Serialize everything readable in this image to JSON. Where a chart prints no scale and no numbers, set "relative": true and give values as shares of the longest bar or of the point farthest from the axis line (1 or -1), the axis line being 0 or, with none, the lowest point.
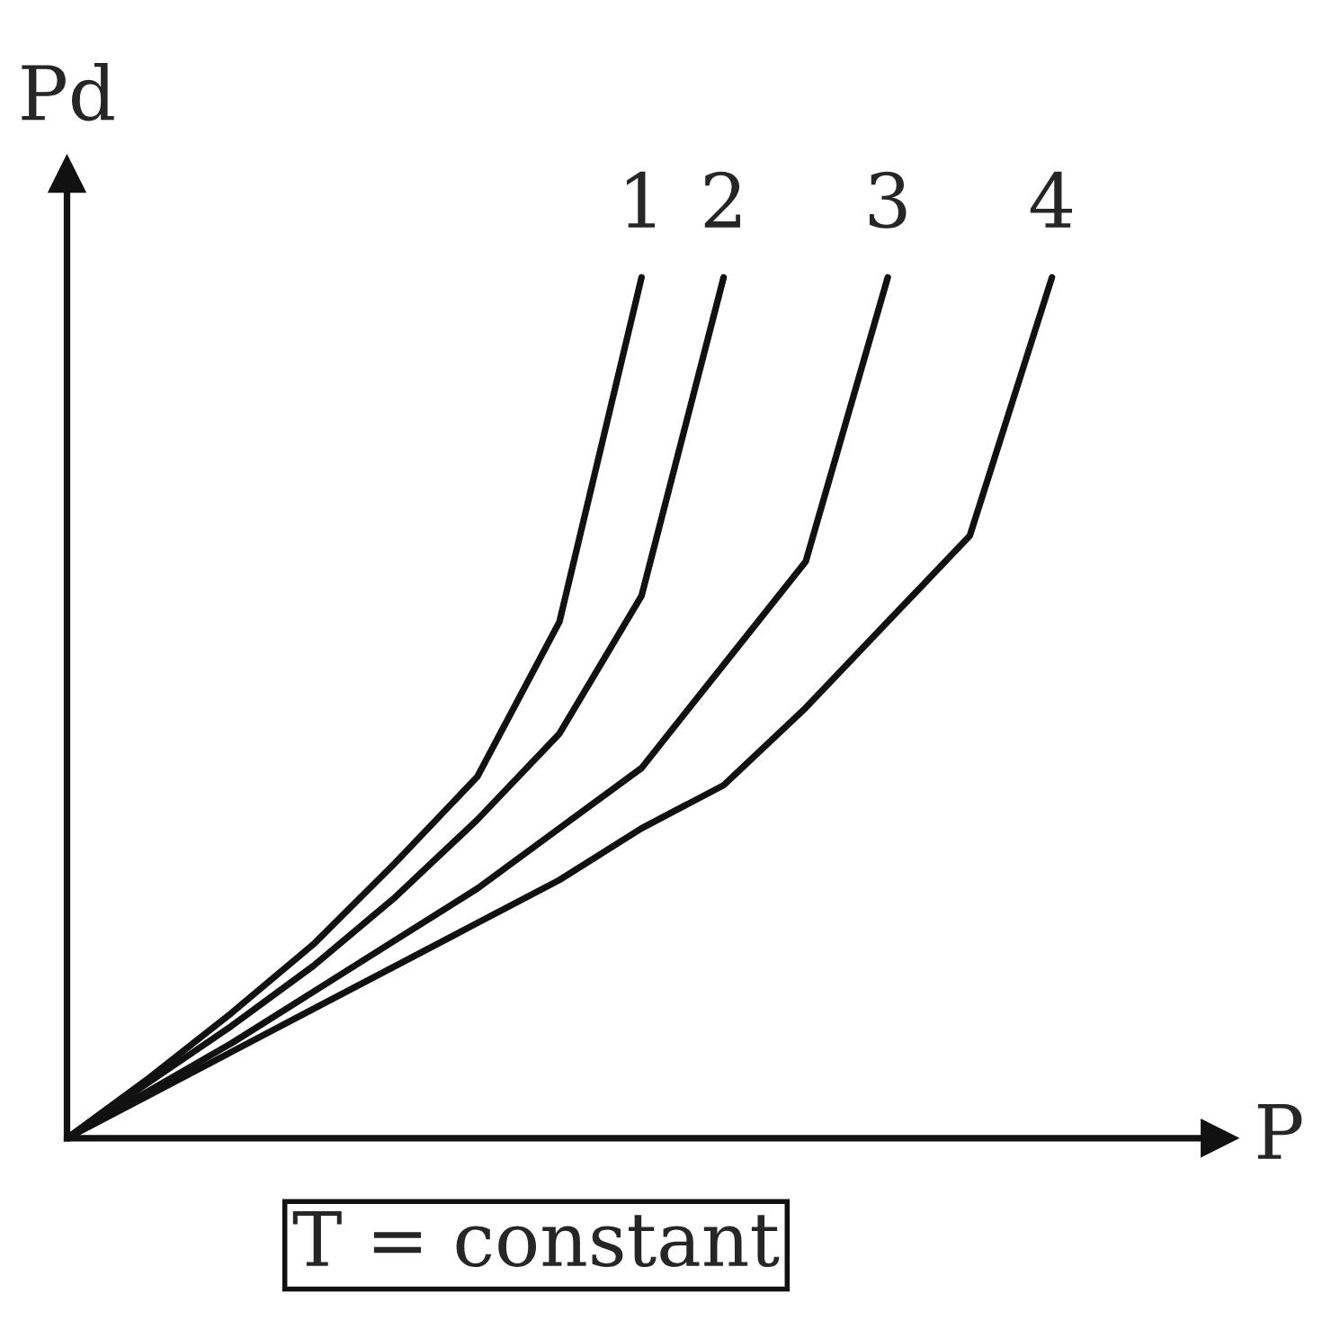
{
  "chart_data": {
    "type": "line",
    "relative": true,
    "xlabel": "P",
    "ylabel": "Pd",
    "annotations": [
      "T = constant"
    ],
    "legend": false,
    "marker": "none",
    "line_style": "solid",
    "categories": [
      null,
      null,
      null,
      null,
      null,
      null,
      null,
      null,
      null,
      null,
      null,
      null,
      null
    ],
    "series": [
      {
        "name": "1",
        "color": "#111111",
        "values": [
          0,
          0.07,
          0.145,
          0.225,
          0.32,
          0.42,
          0.6,
          1,
          null,
          null,
          null,
          null,
          null
        ]
      },
      {
        "name": "2",
        "color": "#111111",
        "values": [
          0,
          0.065,
          0.13,
          0.2,
          0.28,
          0.37,
          0.47,
          0.63,
          1,
          null,
          null,
          null,
          null
        ]
      },
      {
        "name": "3",
        "color": "#111111",
        "values": [
          0,
          0.055,
          0.11,
          0.17,
          0.23,
          0.29,
          0.36,
          0.43,
          0.55,
          0.67,
          1,
          null,
          null
        ]
      },
      {
        "name": "4",
        "color": "#111111",
        "values": [
          0,
          0.05,
          0.1,
          0.15,
          0.2,
          0.25,
          0.3,
          0.36,
          0.41,
          0.5,
          0.6,
          0.7,
          1
        ]
      }
    ]
  }
}
